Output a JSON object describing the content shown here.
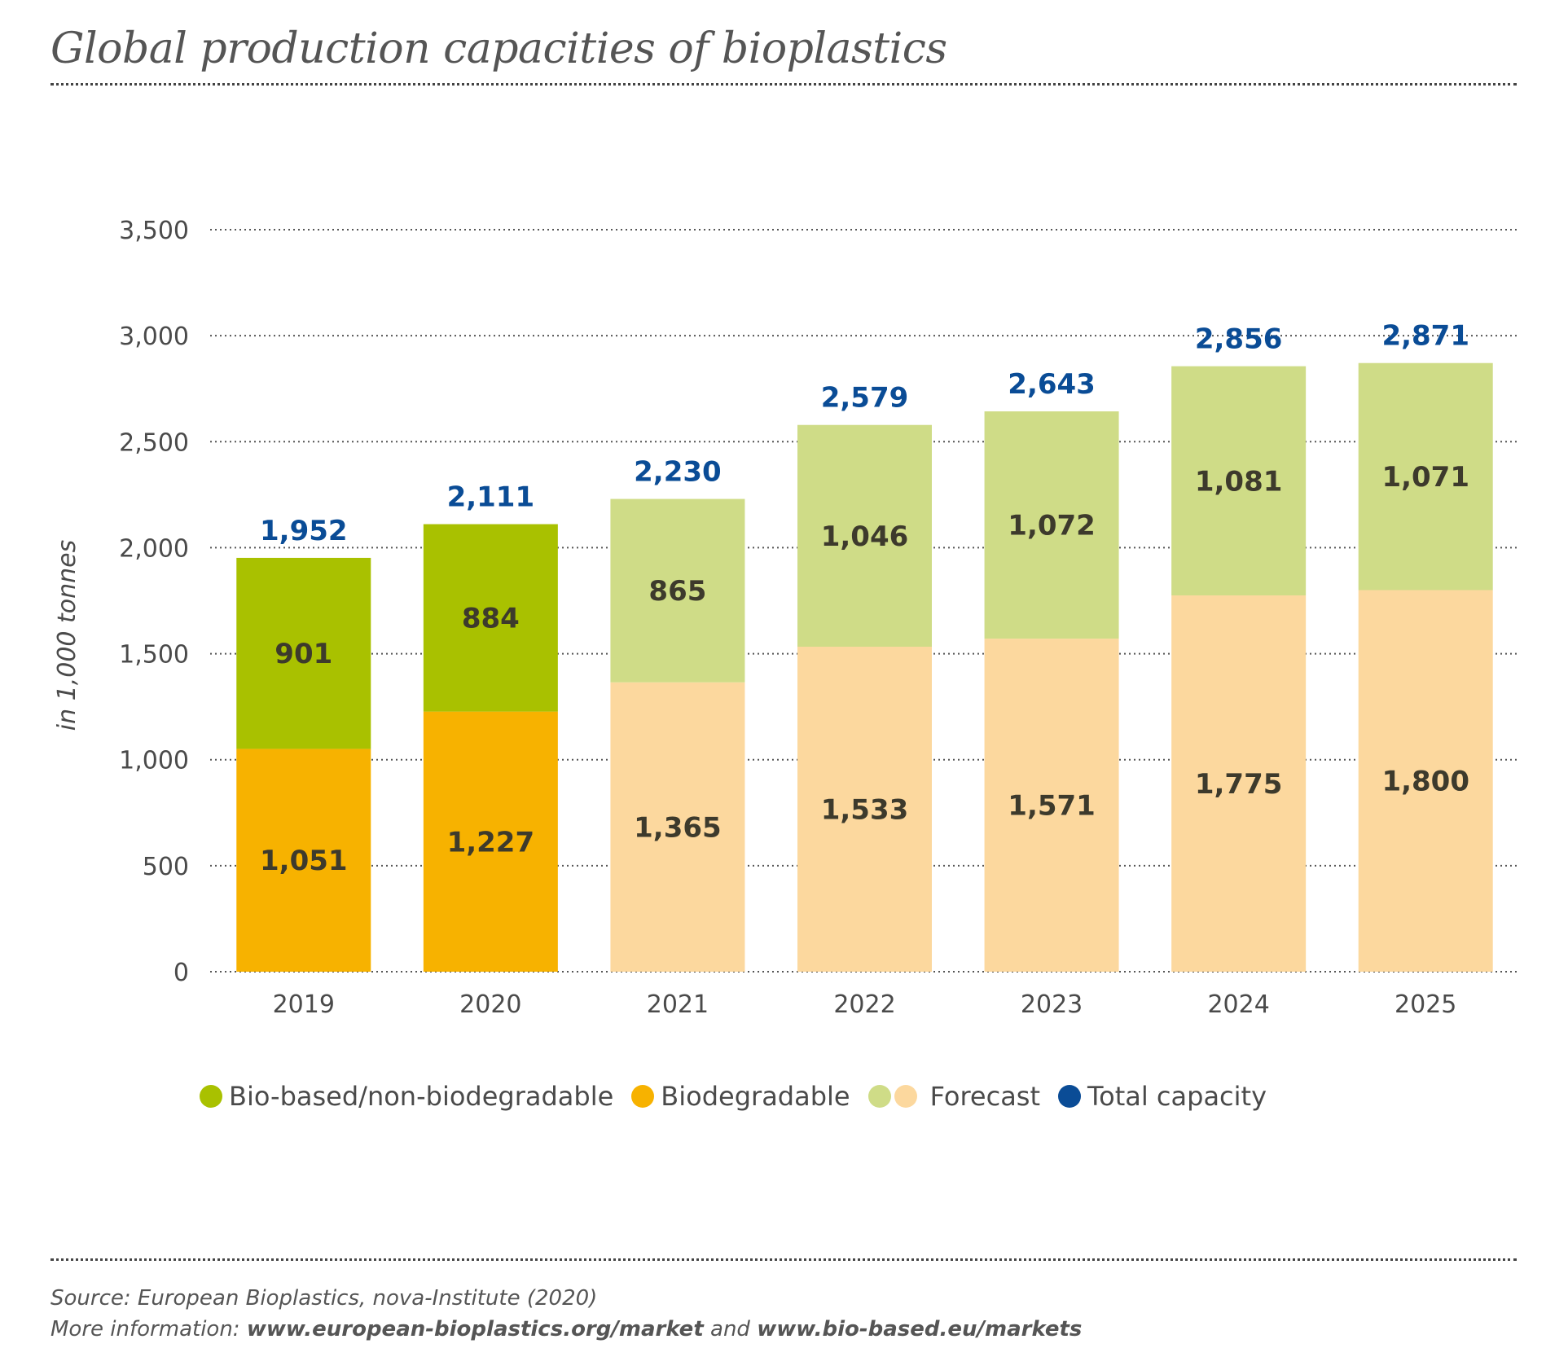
{
  "title": "Global production capacities of bioplastics",
  "colors": {
    "bio_based": "#a9c100",
    "biodegradable": "#f7b200",
    "forecast_bio_based": "#cfdc87",
    "forecast_biodegradable": "#fcd89e",
    "total": "#0a4c96",
    "text": "#4a4a4a"
  },
  "legend": [
    {
      "label": "Bio-based/non-biodegradable",
      "colors": [
        "#a9c100"
      ]
    },
    {
      "label": "Biodegradable",
      "colors": [
        "#f7b200"
      ]
    },
    {
      "label": "Forecast",
      "colors": [
        "#cfdc87",
        "#fcd89e"
      ]
    },
    {
      "label": "Total capacity",
      "colors": [
        "#0a4c96"
      ]
    }
  ],
  "source": {
    "line1": "Source: European Bioplastics, nova-Institute (2020)",
    "line2_prefix": "More information: ",
    "link1": "www.european-bioplastics.org/market",
    "and": " and ",
    "link2": "www.bio-based.eu/markets"
  },
  "chart_data": {
    "type": "bar",
    "stacked": true,
    "ylabel": "in 1,000 tonnes",
    "xlabel": "",
    "ylim": [
      0,
      3500
    ],
    "yticks": [
      0,
      500,
      1000,
      1500,
      2000,
      2500,
      3000,
      3500
    ],
    "ytick_labels": [
      "0",
      "500",
      "1,000",
      "1,500",
      "2,000",
      "2,500",
      "3,000",
      "3,500"
    ],
    "grid": true,
    "legend_position": "bottom",
    "categories": [
      "2019",
      "2020",
      "2021",
      "2022",
      "2023",
      "2024",
      "2025"
    ],
    "forecast": [
      false,
      false,
      true,
      true,
      true,
      true,
      true
    ],
    "series": [
      {
        "name": "Biodegradable",
        "values": [
          1051,
          1227,
          1365,
          1533,
          1571,
          1775,
          1800
        ],
        "labels": [
          "1,051",
          "1,227",
          "1,365",
          "1,533",
          "1,571",
          "1,775",
          "1,800"
        ]
      },
      {
        "name": "Bio-based/non-biodegradable",
        "values": [
          901,
          884,
          865,
          1046,
          1072,
          1081,
          1071
        ],
        "labels": [
          "901",
          "884",
          "865",
          "1,046",
          "1,072",
          "1,081",
          "1,071"
        ]
      }
    ],
    "totals": {
      "name": "Total capacity",
      "values": [
        1952,
        2111,
        2230,
        2579,
        2643,
        2856,
        2871
      ],
      "labels": [
        "1,952",
        "2,111",
        "2,230",
        "2,579",
        "2,643",
        "2,856",
        "2,871"
      ]
    }
  }
}
